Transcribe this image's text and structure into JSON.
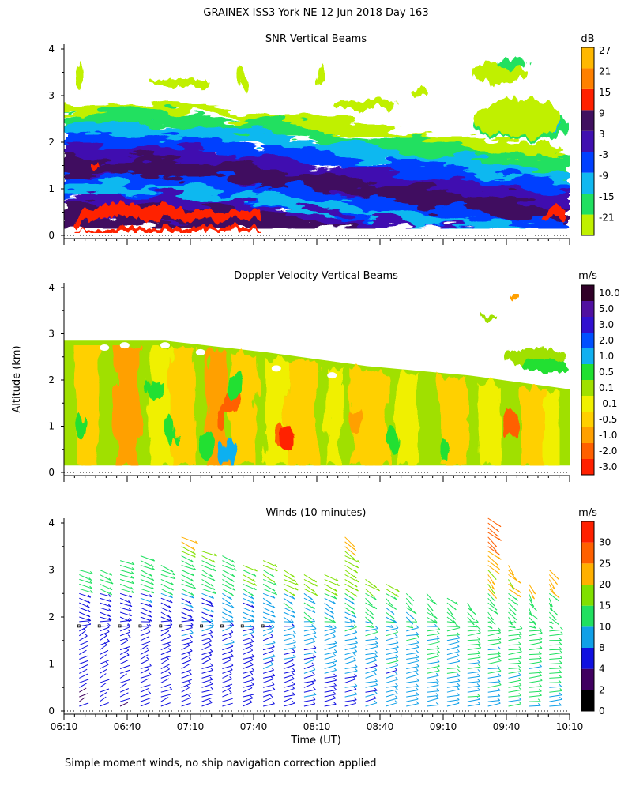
{
  "main_title": "GRAINEX ISS3 York NE  12 Jun 2018 Day 163",
  "footnote": "Simple moment winds, no ship navigation correction applied",
  "chart_data": [
    {
      "type": "heatmap",
      "title": "SNR Vertical Beams",
      "ylabel": "",
      "ylim": [
        0,
        4
      ],
      "yticks": [
        "0",
        "1",
        "2",
        "3",
        "4"
      ],
      "colorbar_unit": "dB",
      "colorbar_levels": [
        "-21",
        "-15",
        "-9",
        "-3",
        "3",
        "9",
        "15",
        "21",
        "27"
      ],
      "colorbar_colors": [
        "#c0f000",
        "#20e060",
        "#10b8f0",
        "#0040ff",
        "#4010b0",
        "#401060",
        "#ff2000",
        "#ff8000",
        "#ffb800"
      ],
      "top_boundary_km": [
        [
          0,
          2.85
        ],
        [
          0.2,
          2.85
        ],
        [
          0.4,
          2.65
        ],
        [
          0.6,
          2.35
        ],
        [
          0.8,
          2.1
        ],
        [
          1,
          1.8
        ]
      ]
    },
    {
      "type": "heatmap",
      "title": "Doppler Velocity Vertical Beams",
      "ylabel": "Altitude (km)",
      "ylim": [
        0,
        4
      ],
      "yticks": [
        "0",
        "1",
        "2",
        "3",
        "4"
      ],
      "colorbar_unit": "m/s",
      "colorbar_levels": [
        "10.0",
        "5.0",
        "3.0",
        "2.0",
        "1.0",
        "0.5",
        "0.1",
        "-0.1",
        "-0.5",
        "-1.0",
        "-2.0",
        "-3.0"
      ],
      "colorbar_colors": [
        "#300028",
        "#5010a0",
        "#3010d0",
        "#0050ff",
        "#10b0f0",
        "#20e030",
        "#a0e000",
        "#f0f000",
        "#ffd000",
        "#ffa000",
        "#ff6000",
        "#ff2000"
      ],
      "top_boundary_km": [
        [
          0,
          2.85
        ],
        [
          0.2,
          2.85
        ],
        [
          0.4,
          2.6
        ],
        [
          0.6,
          2.3
        ],
        [
          0.8,
          2.1
        ],
        [
          1,
          1.8
        ]
      ]
    },
    {
      "type": "scatter",
      "title": "Winds (10 minutes)",
      "xlabel": "Time (UT)",
      "xticks": [
        "06:10",
        "06:40",
        "07:10",
        "07:40",
        "08:10",
        "08:40",
        "09:10",
        "09:40",
        "10:10"
      ],
      "ylim": [
        0,
        4
      ],
      "yticks": [
        "0",
        "1",
        "2",
        "3",
        "4"
      ],
      "colorbar_unit": "m/s",
      "colorbar_levels": [
        "0",
        "2",
        "4",
        "8",
        "10",
        "15",
        "20",
        "25",
        "30"
      ],
      "colorbar_colors": [
        "#000000",
        "#400060",
        "#1010e0",
        "#10a0e8",
        "#20e060",
        "#80e000",
        "#ffb000",
        "#ff6000",
        "#ff2000"
      ],
      "profile_count": 24,
      "wind_top_km": [
        3.1,
        3.1,
        3.3,
        3.4,
        3.2,
        3.8,
        3.5,
        3.4,
        3.2,
        3.3,
        3.1,
        3.0,
        3.0,
        3.8,
        2.9,
        2.8,
        2.6,
        2.6,
        2.5,
        2.4,
        4.2,
        3.2,
        2.8,
        3.1
      ]
    }
  ]
}
